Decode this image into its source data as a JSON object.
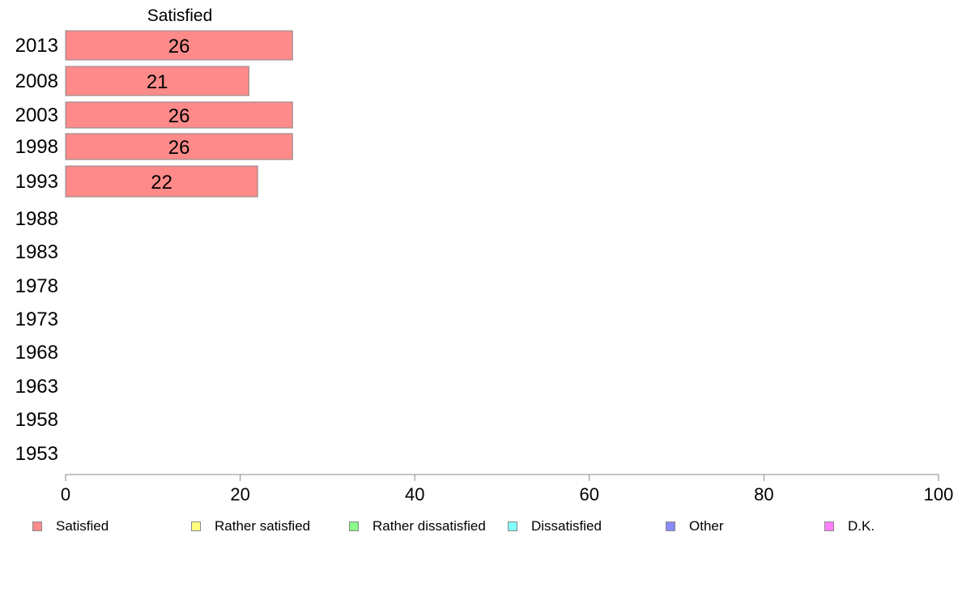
{
  "chart_data": {
    "type": "bar",
    "orientation": "horizontal",
    "header": "Satisfied",
    "categories": [
      "2013",
      "2008",
      "2003",
      "1998",
      "1993",
      "1988",
      "1983",
      "1978",
      "1973",
      "1968",
      "1963",
      "1958",
      "1953"
    ],
    "series": [
      {
        "name": "Satisfied",
        "color": "#ff8a8a",
        "values": [
          26,
          21,
          26,
          26,
          22,
          null,
          null,
          null,
          null,
          null,
          null,
          null,
          null
        ]
      }
    ],
    "data_labels": [
      "26",
      "21",
      "26",
      "26",
      "22",
      null,
      null,
      null,
      null,
      null,
      null,
      null,
      null
    ],
    "xlim": [
      0,
      100
    ],
    "xticks": [
      "0",
      "20",
      "40",
      "60",
      "80",
      "100"
    ],
    "grid": false,
    "legend_position": "bottom",
    "legend": [
      {
        "label": "Satisfied",
        "color": "#ff8a8a"
      },
      {
        "label": "Rather satisfied",
        "color": "#ffff80"
      },
      {
        "label": "Rather dissatisfied",
        "color": "#88ff88"
      },
      {
        "label": "Dissatisfied",
        "color": "#80ffff"
      },
      {
        "label": "Other",
        "color": "#8888ff"
      },
      {
        "label": "D.K.",
        "color": "#ff80ff"
      }
    ]
  }
}
